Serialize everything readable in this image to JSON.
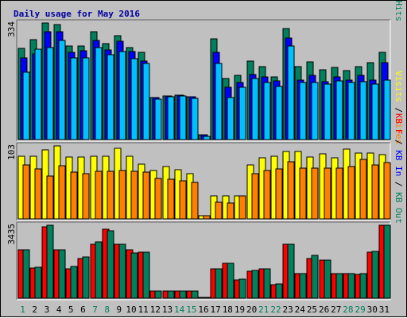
{
  "chart_data": {
    "type": "bar",
    "title": "Daily usage for May 2016",
    "x": [
      "1",
      "2",
      "3",
      "4",
      "5",
      "6",
      "7",
      "8",
      "9",
      "10",
      "11",
      "12",
      "13",
      "14",
      "15",
      "16",
      "17",
      "18",
      "19",
      "20",
      "21",
      "22",
      "23",
      "24",
      "25",
      "26",
      "27",
      "28",
      "29",
      "30",
      "31"
    ],
    "weekend_days": [
      "1",
      "7",
      "8",
      "14",
      "15",
      "21",
      "22",
      "28",
      "29"
    ],
    "panels": [
      {
        "name": "top",
        "max_label": "334",
        "ymax": 334,
        "legend": [
          {
            "text": "Pages",
            "color": "#00c0ff"
          },
          {
            "text": " / ",
            "color": "#000000"
          },
          {
            "text": "Files",
            "color": "#0000ff"
          },
          {
            "text": " / ",
            "color": "#000000"
          },
          {
            "text": "Hits",
            "color": "#00805c"
          }
        ],
        "series": [
          {
            "name": "Hits",
            "color": "#00805c",
            "values": [
              262,
              286,
              334,
              329,
              267,
              268,
              308,
              274,
              298,
              264,
              251,
              120,
              124,
              127,
              123,
              14,
              289,
              175,
              184,
              225,
              209,
              180,
              318,
              210,
              222,
              200,
              206,
              197,
              208,
              220,
              250
            ]
          },
          {
            "name": "Files",
            "color": "#0000ff",
            "values": [
              234,
              246,
              308,
              310,
              251,
              254,
              283,
              256,
              281,
              252,
              226,
              120,
              124,
              127,
              123,
              14,
              249,
              149,
              164,
              186,
              180,
              168,
              291,
              171,
              185,
              165,
              180,
              171,
              185,
              170,
              221
            ]
          },
          {
            "name": "Pages",
            "color": "#00c0ff",
            "values": [
              192,
              259,
              264,
              283,
              233,
              234,
              264,
              242,
              253,
              232,
              217,
              117,
              122,
              126,
              119,
              9,
              218,
              121,
              149,
              174,
              164,
              152,
              267,
              164,
              164,
              160,
              168,
              163,
              165,
              160,
              171
            ]
          }
        ]
      },
      {
        "name": "middle",
        "max_label": "103",
        "ymax": 103,
        "legend": [
          {
            "text": "Visits",
            "color": "#ffff00"
          },
          {
            "text": " / ",
            "color": "#000000"
          },
          {
            "text": "Sites",
            "color": "#ff8000"
          }
        ],
        "series": [
          {
            "name": "Visits",
            "color": "#ffff00",
            "values": [
              88,
              88,
              97,
              103,
              87,
              87,
              88,
              88,
              100,
              88,
              77,
              68,
              74,
              69,
              64,
              5,
              33,
              32,
              32,
              76,
              86,
              88,
              95,
              95,
              87,
              92,
              86,
              98,
              93,
              93,
              91
            ]
          },
          {
            "name": "Sites",
            "color": "#ff8000",
            "values": [
              76,
              71,
              61,
              75,
              66,
              64,
              67,
              67,
              68,
              67,
              66,
              57,
              56,
              54,
              52,
              5,
              24,
              22,
              32,
              64,
              68,
              70,
              81,
              72,
              72,
              72,
              72,
              74,
              84,
              76,
              79
            ]
          }
        ]
      },
      {
        "name": "bottom",
        "max_label": "3435",
        "ymax": 3435,
        "legend": [
          {
            "text": "KB F",
            "color": "#ff0000"
          },
          {
            "text": " / ",
            "color": "#000000"
          },
          {
            "text": "KB In",
            "color": "#0000ff"
          },
          {
            "text": " / ",
            "color": "#000000"
          },
          {
            "text": "KB Out",
            "color": "#00805c"
          }
        ],
        "series": [
          {
            "name": "KB F",
            "color": "#ff0000",
            "values": [
              2290,
              1430,
              3365,
              2290,
              1395,
              1875,
              2545,
              3245,
              2545,
              2290,
              2155,
              345,
              345,
              345,
              345,
              0,
              1385,
              1655,
              855,
              1270,
              1385,
              635,
              2545,
              1155,
              1875,
              1785,
              1155,
              1155,
              1135,
              2155,
              3435
            ]
          },
          {
            "name": "KB Out",
            "color": "#00805c",
            "values": [
              2290,
              1465,
              3435,
              2290,
              1475,
              1945,
              2655,
              3185,
              2545,
              2130,
              2155,
              345,
              345,
              345,
              345,
              0,
              1385,
              1655,
              885,
              1300,
              1385,
              675,
              2545,
              1175,
              2025,
              1785,
              1155,
              1155,
              1155,
              2210,
              3435
            ]
          }
        ]
      }
    ]
  }
}
